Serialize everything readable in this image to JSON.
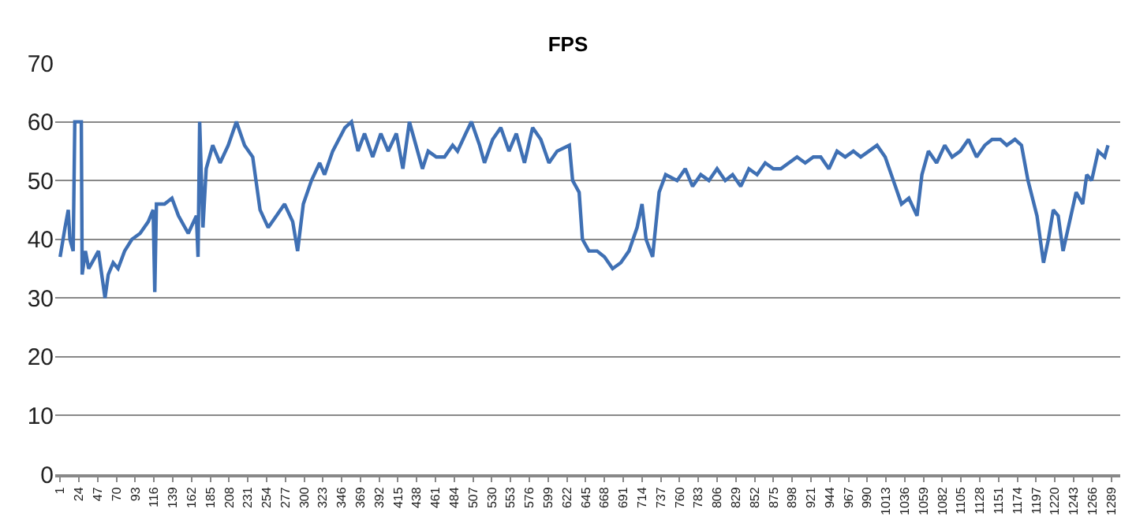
{
  "chart_data": {
    "type": "line",
    "title": "FPS",
    "x": [
      1,
      7,
      11,
      13,
      17,
      19,
      27,
      28,
      32,
      36,
      44,
      48,
      52,
      56,
      60,
      66,
      72,
      80,
      89,
      99,
      109,
      115,
      117,
      119,
      129,
      138,
      146,
      158,
      168,
      170,
      172,
      176,
      180,
      188,
      197,
      207,
      217,
      227,
      237,
      246,
      256,
      266,
      276,
      286,
      292,
      299,
      309,
      319,
      325,
      335,
      350,
      358,
      366,
      374,
      384,
      394,
      403,
      413,
      421,
      429,
      437,
      445,
      452,
      462,
      472,
      482,
      488,
      498,
      505,
      515,
      521,
      531,
      541,
      551,
      560,
      570,
      580,
      590,
      600,
      610,
      625,
      629,
      637,
      641,
      649,
      659,
      668,
      678,
      688,
      698,
      708,
      714,
      719,
      727,
      735,
      743,
      757,
      767,
      776,
      786,
      796,
      806,
      816,
      825,
      835,
      845,
      855,
      865,
      875,
      884,
      894,
      904,
      914,
      924,
      933,
      943,
      953,
      963,
      973,
      982,
      992,
      1002,
      1012,
      1022,
      1032,
      1041,
      1051,
      1057,
      1065,
      1075,
      1085,
      1094,
      1104,
      1114,
      1124,
      1134,
      1143,
      1153,
      1161,
      1171,
      1179,
      1187,
      1198,
      1206,
      1212,
      1218,
      1224,
      1230,
      1238,
      1246,
      1254,
      1259,
      1265,
      1273,
      1281,
      1285
    ],
    "series": [
      {
        "color": "#3f70b4",
        "values": [
          37,
          42,
          45,
          40,
          38,
          60,
          60,
          34,
          38,
          35,
          37,
          38,
          34,
          30,
          34,
          36,
          35,
          38,
          40,
          41,
          43,
          45,
          31,
          46,
          46,
          47,
          44,
          41,
          44,
          37,
          60,
          42,
          52,
          56,
          53,
          56,
          60,
          56,
          54,
          45,
          42,
          44,
          46,
          43,
          38,
          46,
          50,
          53,
          51,
          55,
          59,
          60,
          55,
          58,
          54,
          58,
          55,
          58,
          52,
          60,
          56,
          52,
          55,
          54,
          54,
          56,
          55,
          58,
          60,
          56,
          53,
          57,
          59,
          55,
          58,
          53,
          59,
          57,
          53,
          55,
          56,
          50,
          48,
          40,
          38,
          38,
          37,
          35,
          36,
          38,
          42,
          46,
          40,
          37,
          48,
          51,
          50,
          52,
          49,
          51,
          50,
          52,
          50,
          51,
          49,
          52,
          51,
          53,
          52,
          52,
          53,
          54,
          53,
          54,
          54,
          52,
          55,
          54,
          55,
          54,
          55,
          56,
          54,
          50,
          46,
          47,
          44,
          51,
          55,
          53,
          56,
          54,
          55,
          57,
          54,
          56,
          57,
          57,
          56,
          57,
          56,
          50,
          44,
          36,
          40,
          45,
          44,
          38,
          43,
          48,
          46,
          51,
          50,
          55,
          54,
          56
        ]
      }
    ],
    "xlim": [
      -5,
      1300
    ],
    "xticks": [
      1,
      24,
      47,
      70,
      93,
      116,
      139,
      162,
      185,
      208,
      231,
      254,
      277,
      300,
      323,
      346,
      369,
      392,
      415,
      438,
      461,
      484,
      507,
      530,
      553,
      576,
      599,
      622,
      645,
      668,
      691,
      714,
      737,
      760,
      783,
      806,
      829,
      852,
      875,
      898,
      921,
      944,
      967,
      990,
      1013,
      1036,
      1059,
      1082,
      1105,
      1128,
      1151,
      1174,
      1197,
      1220,
      1243,
      1266,
      1289
    ],
    "ylim": [
      0,
      70
    ],
    "yticks": [
      0,
      10,
      20,
      30,
      40,
      50,
      60,
      70
    ],
    "grid": "y",
    "legend": false,
    "marker": "none",
    "line_style": "solid"
  }
}
